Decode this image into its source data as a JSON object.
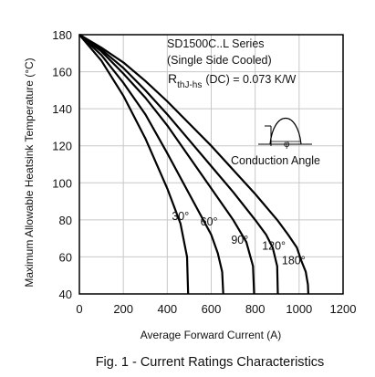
{
  "chart_data": {
    "type": "line",
    "xlabel": "Average Forward Current (A)",
    "ylabel": "Maximum Allowable Heatsink Temperature (°C)",
    "xlim": [
      0,
      1200
    ],
    "ylim": [
      40,
      180
    ],
    "xticks": [
      0,
      200,
      400,
      600,
      800,
      1000,
      1200
    ],
    "yticks": [
      40,
      60,
      80,
      100,
      120,
      140,
      160,
      180
    ],
    "grid": true,
    "caption": "Fig. 1 - Current Ratings Characteristics",
    "annotations": {
      "series_name": "SD1500C..L Series",
      "cooling": "(Single Side Cooled)",
      "rth_symbol": "R",
      "rth_subscript": "thJ-hs",
      "rth_value": "(DC) = 0.073 K/W",
      "diagram_label": "Conduction Angle",
      "phi_symbol": "φ"
    },
    "series": [
      {
        "name": "30°",
        "label_at": [
          460,
          80
        ],
        "points": [
          [
            0,
            180
          ],
          [
            100,
            166
          ],
          [
            200,
            147
          ],
          [
            300,
            124
          ],
          [
            400,
            97
          ],
          [
            460,
            78
          ],
          [
            490,
            60
          ],
          [
            495,
            40
          ]
        ]
      },
      {
        "name": "60°",
        "label_at": [
          590,
          77
        ],
        "points": [
          [
            0,
            180
          ],
          [
            100,
            169
          ],
          [
            200,
            154
          ],
          [
            300,
            137
          ],
          [
            400,
            116
          ],
          [
            500,
            94
          ],
          [
            600,
            72
          ],
          [
            630,
            62
          ],
          [
            650,
            52
          ],
          [
            655,
            40
          ]
        ]
      },
      {
        "name": "90°",
        "label_at": [
          730,
          67
        ],
        "points": [
          [
            0,
            180
          ],
          [
            100,
            171
          ],
          [
            200,
            159
          ],
          [
            300,
            146
          ],
          [
            400,
            131
          ],
          [
            500,
            114
          ],
          [
            600,
            97
          ],
          [
            700,
            80
          ],
          [
            760,
            68
          ],
          [
            790,
            55
          ],
          [
            795,
            40
          ]
        ]
      },
      {
        "name": "120°",
        "label_at": [
          885,
          64
        ],
        "points": [
          [
            0,
            180
          ],
          [
            100,
            172
          ],
          [
            200,
            162
          ],
          [
            300,
            150
          ],
          [
            400,
            137
          ],
          [
            500,
            123
          ],
          [
            600,
            109
          ],
          [
            700,
            95
          ],
          [
            800,
            80
          ],
          [
            850,
            72
          ],
          [
            880,
            65
          ],
          [
            900,
            55
          ],
          [
            903,
            40
          ]
        ]
      },
      {
        "name": "180°",
        "label_at": [
          975,
          56
        ],
        "points": [
          [
            0,
            180
          ],
          [
            100,
            173
          ],
          [
            200,
            165
          ],
          [
            300,
            155
          ],
          [
            400,
            144
          ],
          [
            500,
            132
          ],
          [
            600,
            120
          ],
          [
            700,
            107
          ],
          [
            800,
            94
          ],
          [
            900,
            80
          ],
          [
            950,
            72
          ],
          [
            990,
            65
          ],
          [
            1010,
            58
          ],
          [
            1030,
            52
          ],
          [
            1040,
            45
          ],
          [
            1042,
            40
          ]
        ]
      }
    ]
  },
  "colors": {
    "line": "#000000",
    "grid": "#c8c8c8",
    "axis": "#000000",
    "text": "#111111"
  }
}
